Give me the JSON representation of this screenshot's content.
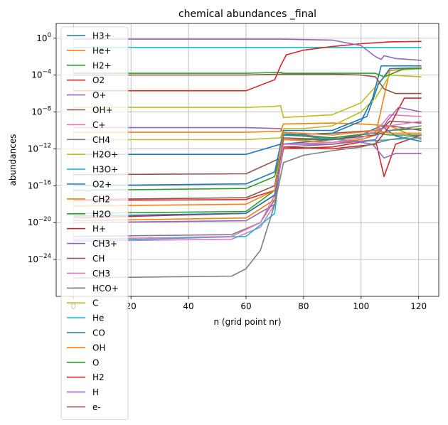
{
  "chart_data": {
    "type": "line",
    "title": "chemical abundances _final",
    "xlabel": "n (grid point nr)",
    "ylabel": "abundances",
    "xlim": [
      -6,
      127
    ],
    "ylog": true,
    "ylim_log10": [
      -28,
      1.6
    ],
    "grid": true,
    "legend_position": "top-left",
    "x_ticks": [
      0,
      20,
      40,
      60,
      80,
      100,
      120
    ],
    "x_tick_labels": [
      "0",
      "20",
      "40",
      "60",
      "80",
      "100",
      "120"
    ],
    "y_ticks_log10": [
      0,
      -4,
      -8,
      -12,
      -16,
      -20,
      -24
    ],
    "y_tick_labels": [
      {
        "base": "10",
        "exp": "0"
      },
      {
        "base": "10",
        "exp": "−4"
      },
      {
        "base": "10",
        "exp": "−8"
      },
      {
        "base": "10",
        "exp": "−12"
      },
      {
        "base": "10",
        "exp": "−16"
      },
      {
        "base": "10",
        "exp": "−20"
      },
      {
        "base": "10",
        "exp": "−24"
      }
    ],
    "series": [
      {
        "name": "H3+",
        "color": "#1f77b4",
        "x": [
          0,
          60,
          72,
          90,
          100,
          107,
          112,
          121
        ],
        "log10_y": [
          -12.6,
          -12.6,
          -11.5,
          -11.0,
          -10.5,
          -9.5,
          -10.6,
          -11.2
        ]
      },
      {
        "name": "He+",
        "color": "#ff7f0e",
        "x": [
          0,
          60,
          72,
          73,
          90,
          100,
          110,
          121
        ],
        "log10_y": [
          -10.2,
          -10.2,
          -10.1,
          -9.3,
          -9.2,
          -9.3,
          -9.5,
          -11.0
        ]
      },
      {
        "name": "H2+",
        "color": "#2ca02c",
        "x": [
          0,
          60,
          70,
          73,
          90,
          105,
          110,
          121
        ],
        "log10_y": [
          -16.5,
          -16.3,
          -15.0,
          -11.0,
          -11.0,
          -10.5,
          -10.0,
          -9.8
        ]
      },
      {
        "name": "O2",
        "color": "#d62728",
        "x": [
          0,
          60,
          70,
          73,
          90,
          105,
          108,
          112,
          121
        ],
        "log10_y": [
          -19.5,
          -19.0,
          -17.0,
          -12.0,
          -11.8,
          -11.0,
          -15.0,
          -11.5,
          -10.5
        ]
      },
      {
        "name": "O+",
        "color": "#9467bd",
        "x": [
          0,
          60,
          72,
          73,
          90,
          104,
          108,
          112,
          121
        ],
        "log10_y": [
          -9.7,
          -9.7,
          -9.8,
          -10.3,
          -10.8,
          -11.5,
          -13.0,
          -12.5,
          -12.5
        ]
      },
      {
        "name": "OH+",
        "color": "#8c564b",
        "x": [
          0,
          60,
          72,
          73,
          90,
          105,
          110,
          121
        ],
        "log10_y": [
          -14.8,
          -14.7,
          -13.0,
          -10.5,
          -10.3,
          -10.0,
          -9.5,
          -10.0
        ]
      },
      {
        "name": "C+",
        "color": "#e377c2",
        "x": [
          0,
          55,
          65,
          70,
          73,
          90,
          105,
          110,
          121
        ],
        "log10_y": [
          -22.0,
          -21.8,
          -20.5,
          -18.0,
          -11.0,
          -10.8,
          -10.2,
          -8.3,
          -8.5
        ]
      },
      {
        "name": "CH4",
        "color": "#7f7f7f",
        "x": [
          0,
          55,
          65,
          70,
          73,
          90,
          100,
          110,
          121
        ],
        "log10_y": [
          -21.5,
          -21.3,
          -20.0,
          -17.5,
          -11.8,
          -11.5,
          -11.0,
          -10.0,
          -9.5
        ]
      },
      {
        "name": "H2O+",
        "color": "#bcbd22",
        "x": [
          0,
          60,
          70,
          72,
          73,
          90,
          100,
          110,
          121
        ],
        "log10_y": [
          -7.5,
          -7.5,
          -7.4,
          -7.3,
          -8.6,
          -8.3,
          -7.0,
          -3.5,
          -3.3
        ]
      },
      {
        "name": "H3O+",
        "color": "#17becf",
        "x": [
          0,
          60,
          70,
          73,
          85,
          100,
          110,
          121
        ],
        "log10_y": [
          -22.0,
          -21.5,
          -19.0,
          -10.3,
          -10.8,
          -11.2,
          -11.0,
          -10.8
        ]
      },
      {
        "name": "O2+",
        "color": "#1f77b4",
        "x": [
          0,
          60,
          70,
          73,
          90,
          102,
          106,
          110,
          121
        ],
        "log10_y": [
          -16.0,
          -15.8,
          -14.5,
          -10.0,
          -10.0,
          -8.5,
          -5.0,
          -3.3,
          -3.2
        ]
      },
      {
        "name": "CH2",
        "color": "#ff7f0e",
        "x": [
          0,
          60,
          70,
          73,
          90,
          100,
          105,
          110,
          121
        ],
        "log10_y": [
          -19.8,
          -19.5,
          -17.5,
          -11.0,
          -11.3,
          -11.0,
          -10.5,
          -3.5,
          -3.2
        ]
      },
      {
        "name": "H2O",
        "color": "#2ca02c",
        "x": [
          0,
          60,
          70,
          73,
          90,
          105,
          110,
          121
        ],
        "log10_y": [
          -19.0,
          -18.8,
          -16.5,
          -10.5,
          -10.8,
          -10.3,
          -10.5,
          -10.5
        ]
      },
      {
        "name": "H+",
        "color": "#d62728",
        "x": [
          0,
          60,
          70,
          73,
          90,
          105,
          110,
          115,
          121
        ],
        "log10_y": [
          -17.6,
          -17.5,
          -16.5,
          -11.8,
          -12.0,
          -11.5,
          -9.5,
          -6.5,
          -6.5
        ]
      },
      {
        "name": "CH3+",
        "color": "#9467bd",
        "x": [
          0,
          60,
          70,
          73,
          90,
          105,
          109,
          113,
          121
        ],
        "log10_y": [
          -20.0,
          -19.8,
          -18.0,
          -11.5,
          -11.5,
          -11.0,
          -9.0,
          -7.5,
          -8.0
        ]
      },
      {
        "name": "CH",
        "color": "#8c564b",
        "x": [
          0,
          60,
          70,
          73,
          90,
          105,
          110,
          121
        ],
        "log10_y": [
          -17.5,
          -17.3,
          -16.0,
          -10.8,
          -11.0,
          -10.5,
          -9.0,
          -9.2
        ]
      },
      {
        "name": "CH3",
        "color": "#e377c2",
        "x": [
          0,
          55,
          65,
          70,
          73,
          90,
          100,
          110,
          121
        ],
        "log10_y": [
          -21.8,
          -21.5,
          -20.0,
          -17.0,
          -11.5,
          -11.3,
          -10.8,
          -9.5,
          -9.0
        ]
      },
      {
        "name": "HCO+",
        "color": "#7f7f7f",
        "x": [
          0,
          55,
          60,
          65,
          70,
          73,
          80,
          90,
          100,
          110,
          121
        ],
        "log10_y": [
          -26.0,
          -25.8,
          -25.0,
          -23.0,
          -18.0,
          -13.5,
          -12.7,
          -12.2,
          -11.8,
          -11.0,
          -10.5
        ]
      },
      {
        "name": "C",
        "color": "#bcbd22",
        "x": [
          0,
          60,
          72,
          73,
          80,
          90,
          100,
          105,
          110,
          121
        ],
        "log10_y": [
          -11.0,
          -11.0,
          -10.8,
          -9.8,
          -9.8,
          -9.5,
          -8.0,
          -6.5,
          -4.0,
          -4.2
        ]
      },
      {
        "name": "He",
        "color": "#17becf",
        "x": [
          0,
          121
        ],
        "log10_y": [
          -1.0,
          -1.0
        ]
      },
      {
        "name": "CO",
        "color": "#1f77b4",
        "x": [
          0,
          60,
          70,
          73,
          90,
          100,
          104,
          107,
          110,
          121
        ],
        "log10_y": [
          -19.3,
          -19.0,
          -17.0,
          -10.5,
          -10.3,
          -9.0,
          -6.5,
          -3.0,
          -3.0,
          -3.0
        ]
      },
      {
        "name": "OH",
        "color": "#ff7f0e",
        "x": [
          0,
          60,
          70,
          73,
          90,
          105,
          110,
          121
        ],
        "log10_y": [
          -18.2,
          -18.0,
          -16.5,
          -10.2,
          -10.5,
          -10.0,
          -10.3,
          -10.3
        ]
      },
      {
        "name": "O",
        "color": "#2ca02c",
        "x": [
          0,
          60,
          72,
          73,
          90,
          100,
          105,
          108,
          115,
          121
        ],
        "log10_y": [
          -3.8,
          -3.8,
          -3.7,
          -3.8,
          -3.8,
          -3.8,
          -3.8,
          -4.2,
          -3.3,
          -3.3
        ]
      },
      {
        "name": "H2",
        "color": "#d62728",
        "x": [
          0,
          60,
          70,
          72,
          74,
          80,
          90,
          100,
          110,
          121
        ],
        "log10_y": [
          -5.7,
          -5.7,
          -4.5,
          -3.0,
          -1.8,
          -1.3,
          -0.9,
          -0.6,
          -0.4,
          -0.35
        ]
      },
      {
        "name": "H",
        "color": "#9467bd",
        "x": [
          0,
          60,
          72,
          90,
          100,
          105,
          107,
          108,
          112,
          121
        ],
        "log10_y": [
          -0.1,
          -0.1,
          -0.1,
          -0.2,
          -0.8,
          -2.0,
          -2.3,
          -1.9,
          -2.2,
          -2.4
        ]
      },
      {
        "name": "e-",
        "color": "#8c564b",
        "x": [
          0,
          60,
          72,
          73,
          90,
          100,
          105,
          108,
          112,
          121
        ],
        "log10_y": [
          -4.0,
          -4.0,
          -3.9,
          -3.9,
          -3.9,
          -4.0,
          -4.2,
          -5.5,
          -6.0,
          -6.0
        ]
      }
    ]
  }
}
